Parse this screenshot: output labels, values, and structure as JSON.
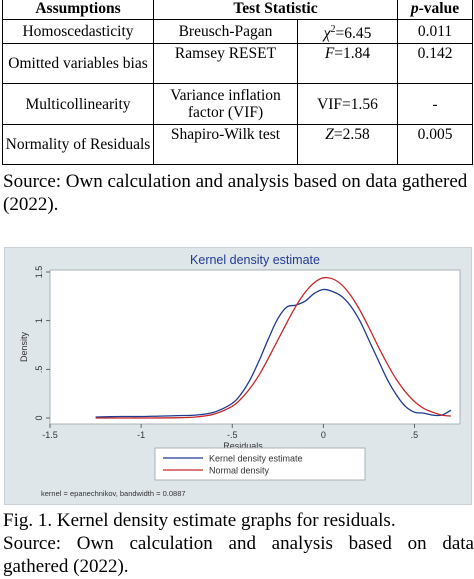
{
  "table": {
    "headers": {
      "assumptions": "Assumptions",
      "test_statistic": "Test Statistic",
      "p_value_italic": "p",
      "p_value_rest": "-value"
    },
    "rows": [
      {
        "assumption": "Homoscedasticity",
        "test": "Breusch-Pagan",
        "stat_var": "χ",
        "stat_sup": "2",
        "stat_val": "=6.45",
        "p": "0.011"
      },
      {
        "assumption": "Omitted variables bias",
        "test": "Ramsey RESET",
        "stat_var": "F",
        "stat_sup": "",
        "stat_val": "=1.84",
        "p": "0.142"
      },
      {
        "assumption": "Multicollinearity",
        "test": "Variance inflation factor (VIF)",
        "stat_var": "VIF",
        "stat_sup": "",
        "stat_val": "=1.56",
        "p": "-"
      },
      {
        "assumption": "Normality of Residuals",
        "test": "Shapiro-Wilk test",
        "stat_var": "Z",
        "stat_sup": "",
        "stat_val": "=2.58",
        "p": "0.005"
      }
    ]
  },
  "source_1": "Source:  Own calculation and analysis based on data gathered (2022).",
  "chart_data": {
    "type": "line",
    "title": "Kernel density estimate",
    "xlabel": "Residuals",
    "ylabel": "Density",
    "xlim": [
      -1.5,
      0.75
    ],
    "ylim": [
      0,
      1.5
    ],
    "xticks": [
      "-1.5",
      "-1",
      "-.5",
      "0",
      ".5"
    ],
    "xtick_values": [
      -1.5,
      -1,
      -0.5,
      0,
      0.5
    ],
    "yticks": [
      "0",
      ".5",
      "1",
      "1.5"
    ],
    "ytick_values": [
      0,
      0.5,
      1,
      1.5
    ],
    "grid": false,
    "legend_position": "bottom",
    "note": "kernel = epanechnikov, bandwidth = 0.0887",
    "series": [
      {
        "name": "Kernel density estimate",
        "color": "#1f3a8f",
        "x": [
          -1.25,
          -1.1,
          -1.0,
          -0.9,
          -0.8,
          -0.7,
          -0.6,
          -0.5,
          -0.45,
          -0.4,
          -0.35,
          -0.3,
          -0.25,
          -0.2,
          -0.15,
          -0.1,
          -0.05,
          0.0,
          0.05,
          0.1,
          0.15,
          0.2,
          0.25,
          0.3,
          0.35,
          0.4,
          0.45,
          0.5,
          0.55,
          0.6,
          0.65,
          0.7
        ],
        "y": [
          0.01,
          0.015,
          0.015,
          0.02,
          0.025,
          0.03,
          0.06,
          0.15,
          0.25,
          0.4,
          0.6,
          0.82,
          1.02,
          1.14,
          1.16,
          1.2,
          1.28,
          1.32,
          1.3,
          1.25,
          1.15,
          1.0,
          0.8,
          0.6,
          0.4,
          0.24,
          0.12,
          0.06,
          0.05,
          0.03,
          0.03,
          0.08
        ]
      },
      {
        "name": "Normal density",
        "color": "#c62828",
        "x": [
          -1.25,
          -1.0,
          -0.8,
          -0.7,
          -0.6,
          -0.5,
          -0.45,
          -0.4,
          -0.35,
          -0.3,
          -0.25,
          -0.2,
          -0.15,
          -0.1,
          -0.05,
          0.0,
          0.05,
          0.1,
          0.15,
          0.2,
          0.25,
          0.3,
          0.35,
          0.4,
          0.45,
          0.5,
          0.55,
          0.6,
          0.65,
          0.7
        ],
        "y": [
          0.0,
          0.0,
          0.003,
          0.01,
          0.04,
          0.12,
          0.2,
          0.31,
          0.45,
          0.62,
          0.8,
          0.98,
          1.15,
          1.29,
          1.39,
          1.44,
          1.43,
          1.37,
          1.26,
          1.11,
          0.93,
          0.74,
          0.56,
          0.4,
          0.27,
          0.17,
          0.1,
          0.06,
          0.03,
          0.02
        ]
      }
    ]
  },
  "caption": "Fig. 1. Kernel density estimate graphs for residuals.",
  "source_2_line1": "Source:  Own calculation and analysis based on data",
  "source_2_line2": "gathered (2022)."
}
